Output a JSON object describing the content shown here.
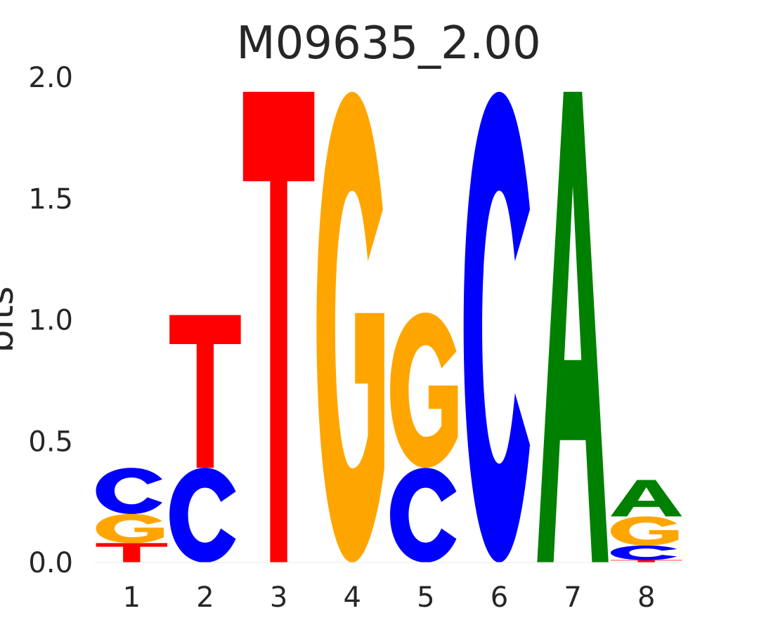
{
  "chart_data": {
    "type": "sequence-logo",
    "title": "M09635_2.00",
    "ylabel": "bits",
    "xlabel": "",
    "ylim": [
      0,
      2.0
    ],
    "yticks": [
      "0.0",
      "0.5",
      "1.0",
      "1.5",
      "2.0"
    ],
    "positions": [
      "1",
      "2",
      "3",
      "4",
      "5",
      "6",
      "7",
      "8"
    ],
    "colors": {
      "A": "#008000",
      "C": "#0000ff",
      "G": "#ffa500",
      "T": "#ff0000"
    },
    "stacks": [
      [
        {
          "base": "T",
          "bits": 0.08
        },
        {
          "base": "G",
          "bits": 0.12
        },
        {
          "base": "C",
          "bits": 0.19
        }
      ],
      [
        {
          "base": "C",
          "bits": 0.39
        },
        {
          "base": "T",
          "bits": 0.63
        }
      ],
      [
        {
          "base": "T",
          "bits": 1.94
        }
      ],
      [
        {
          "base": "G",
          "bits": 1.94
        }
      ],
      [
        {
          "base": "C",
          "bits": 0.39
        },
        {
          "base": "G",
          "bits": 0.64
        }
      ],
      [
        {
          "base": "C",
          "bits": 1.94
        }
      ],
      [
        {
          "base": "A",
          "bits": 1.94
        }
      ],
      [
        {
          "base": "T",
          "bits": 0.01
        },
        {
          "base": "C",
          "bits": 0.06
        },
        {
          "base": "G",
          "bits": 0.12
        },
        {
          "base": "A",
          "bits": 0.15
        }
      ]
    ]
  }
}
